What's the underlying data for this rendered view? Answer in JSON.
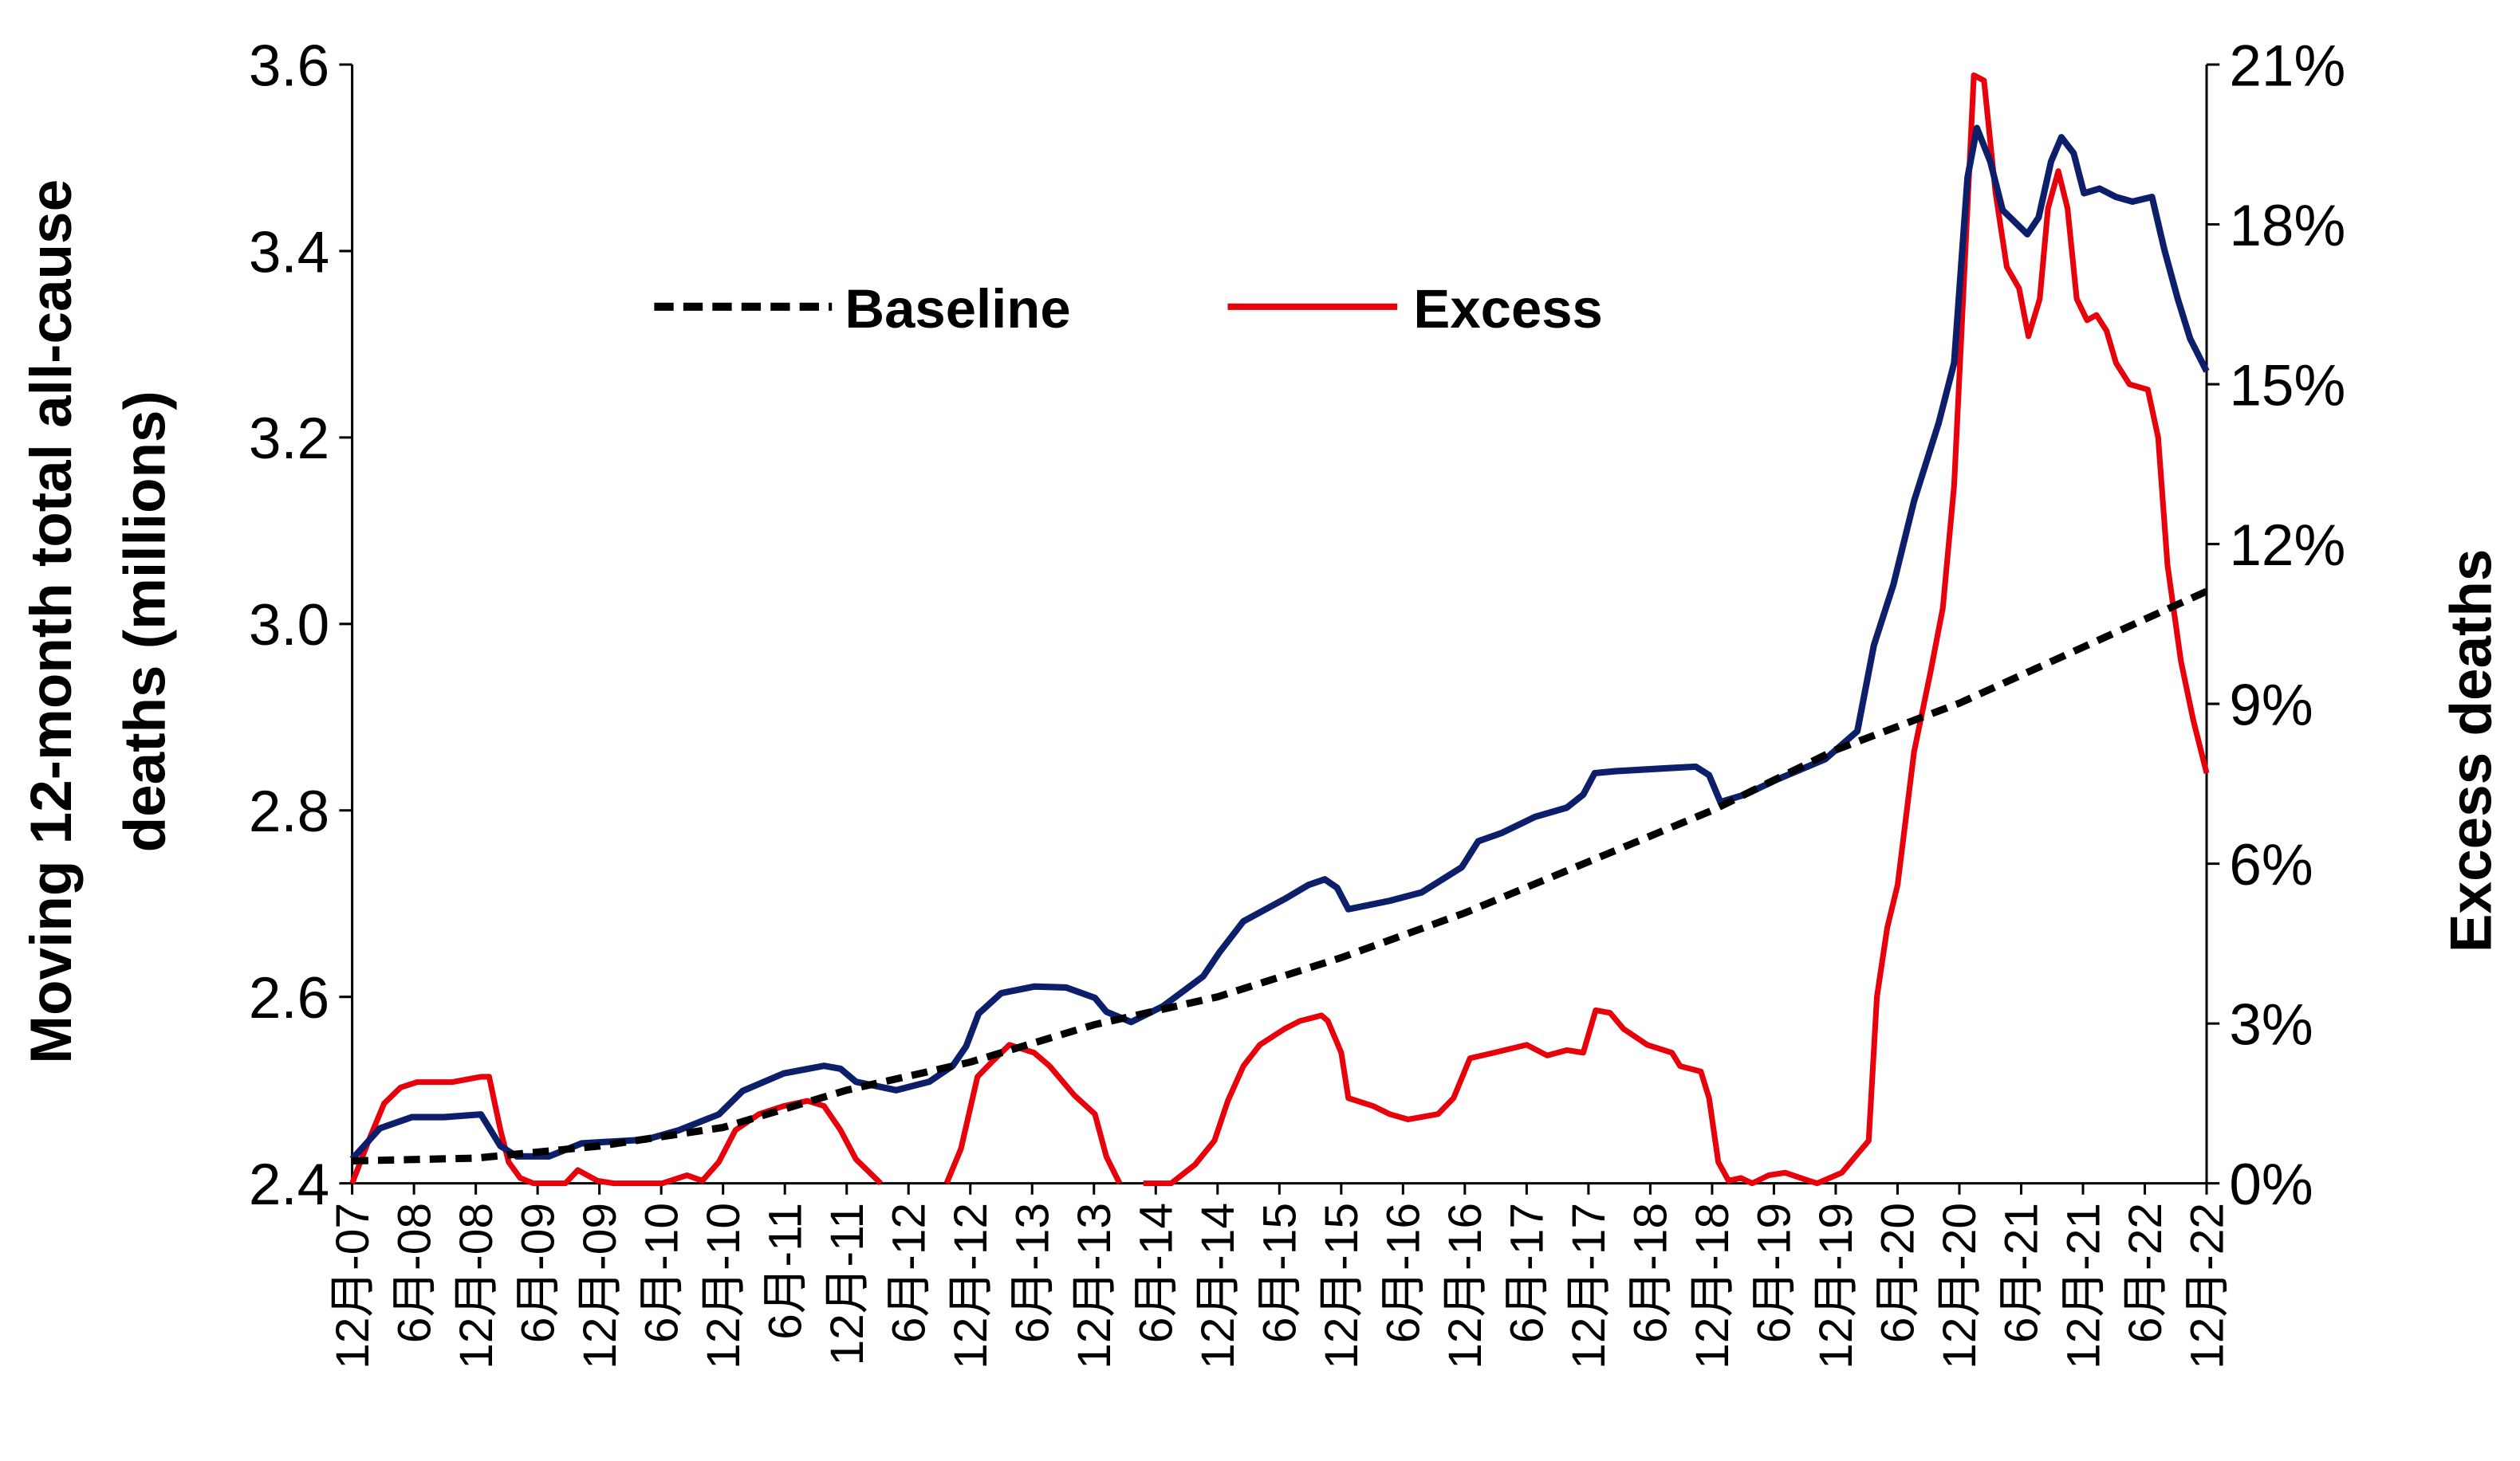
{
  "chart_data": {
    "type": "line",
    "title": "",
    "ylabel_left": [
      "Moving 12-month total all-cause",
      "deaths (millions)"
    ],
    "ylabel_right": "Excess deaths",
    "xlabel": "",
    "x_start": "12月-07",
    "x_unit": "months since 12月-07",
    "x_range": [
      0,
      180
    ],
    "ylim_left": [
      2.4,
      3.6
    ],
    "ylim_right": [
      0,
      21
    ],
    "yticks_left": [
      "2.4",
      "2.6",
      "2.8",
      "3.0",
      "3.2",
      "3.4",
      "3.6"
    ],
    "yticks_right": [
      "0%",
      "3%",
      "6%",
      "9%",
      "12%",
      "15%",
      "18%",
      "21%"
    ],
    "xticks": [
      "12月-07",
      "6月-08",
      "12月-08",
      "6月-09",
      "12月-09",
      "6月-10",
      "12月-10",
      "6月-11",
      "12月-11",
      "6月-12",
      "12月-12",
      "6月-13",
      "12月-13",
      "6月-14",
      "12月-14",
      "6月-15",
      "12月-15",
      "6月-16",
      "12月-16",
      "6月-17",
      "12月-17",
      "6月-18",
      "12月-18",
      "6月-19",
      "12月-19",
      "6月-20",
      "12月-20",
      "6月-21",
      "12月-21",
      "6月-22",
      "12月-22"
    ],
    "grid": false,
    "legend": {
      "placement": "top-left",
      "entries": [
        "Baseline",
        "Excess"
      ]
    },
    "colors": {
      "total": "#0d1f6b",
      "baseline": "#000000",
      "excess": "#e8000b"
    },
    "series": [
      {
        "name": "Total deaths (millions)",
        "axis": "left",
        "style": "solid",
        "points": [
          [
            0,
            2.426
          ],
          [
            2.7,
            2.459
          ],
          [
            5.8,
            2.471
          ],
          [
            8.9,
            2.471
          ],
          [
            12.5,
            2.474
          ],
          [
            14.4,
            2.44
          ],
          [
            16,
            2.429
          ],
          [
            19.1,
            2.429
          ],
          [
            22.3,
            2.443
          ],
          [
            28.5,
            2.447
          ],
          [
            31.7,
            2.457
          ],
          [
            35.6,
            2.474
          ],
          [
            37.9,
            2.499
          ],
          [
            41.9,
            2.518
          ],
          [
            45.8,
            2.526
          ],
          [
            47.4,
            2.523
          ],
          [
            48.9,
            2.509
          ],
          [
            52.8,
            2.5
          ],
          [
            56,
            2.509
          ],
          [
            58.3,
            2.526
          ],
          [
            59.6,
            2.547
          ],
          [
            60.8,
            2.582
          ],
          [
            63,
            2.604
          ],
          [
            66.2,
            2.611
          ],
          [
            69.3,
            2.61
          ],
          [
            72.1,
            2.599
          ],
          [
            73.2,
            2.584
          ],
          [
            75.6,
            2.573
          ],
          [
            78.7,
            2.59
          ],
          [
            82.6,
            2.622
          ],
          [
            84.2,
            2.648
          ],
          [
            86.5,
            2.681
          ],
          [
            90.5,
            2.705
          ],
          [
            92.8,
            2.72
          ],
          [
            94.4,
            2.726
          ],
          [
            95.6,
            2.717
          ],
          [
            96.7,
            2.694
          ],
          [
            100.7,
            2.703
          ],
          [
            103.8,
            2.712
          ],
          [
            107.7,
            2.739
          ],
          [
            109.3,
            2.767
          ],
          [
            111.6,
            2.776
          ],
          [
            114.8,
            2.793
          ],
          [
            117.9,
            2.803
          ],
          [
            119.5,
            2.817
          ],
          [
            120.6,
            2.84
          ],
          [
            122.6,
            2.842
          ],
          [
            127.3,
            2.845
          ],
          [
            130.4,
            2.847
          ],
          [
            131.7,
            2.838
          ],
          [
            132.8,
            2.809
          ],
          [
            135.2,
            2.817
          ],
          [
            138.3,
            2.833
          ],
          [
            143,
            2.855
          ],
          [
            146.1,
            2.885
          ],
          [
            147.7,
            2.977
          ],
          [
            149.6,
            3.042
          ],
          [
            151.6,
            3.132
          ],
          [
            154,
            3.216
          ],
          [
            155.5,
            3.28
          ],
          [
            156.8,
            3.479
          ],
          [
            157.7,
            3.532
          ],
          [
            159,
            3.496
          ],
          [
            160.2,
            3.444
          ],
          [
            162.6,
            3.418
          ],
          [
            163.7,
            3.436
          ],
          [
            164.9,
            3.496
          ],
          [
            165.9,
            3.522
          ],
          [
            167.1,
            3.505
          ],
          [
            168.1,
            3.462
          ],
          [
            169.6,
            3.467
          ],
          [
            171.2,
            3.458
          ],
          [
            172.8,
            3.453
          ],
          [
            174.7,
            3.458
          ],
          [
            175.9,
            3.401
          ],
          [
            177.2,
            3.349
          ],
          [
            178.4,
            3.306
          ],
          [
            180,
            3.271
          ]
        ]
      },
      {
        "name": "Baseline",
        "axis": "left",
        "style": "dashed",
        "points": [
          [
            0,
            2.424
          ],
          [
            12,
            2.427
          ],
          [
            24,
            2.44
          ],
          [
            36,
            2.46
          ],
          [
            48,
            2.5
          ],
          [
            60,
            2.53
          ],
          [
            72,
            2.57
          ],
          [
            84,
            2.6
          ],
          [
            96,
            2.642
          ],
          [
            108,
            2.69
          ],
          [
            120,
            2.745
          ],
          [
            132,
            2.8
          ],
          [
            144,
            2.865
          ],
          [
            156,
            2.915
          ],
          [
            168,
            2.975
          ],
          [
            180,
            3.035
          ]
        ]
      },
      {
        "name": "Excess",
        "axis": "right",
        "unit": "%",
        "style": "solid",
        "segments": [
          [
            [
              0,
              0
            ],
            [
              1.6,
              0.8
            ],
            [
              3.1,
              1.5
            ],
            [
              4.7,
              1.8
            ],
            [
              6.3,
              1.9
            ],
            [
              8.2,
              1.9
            ],
            [
              9.7,
              1.9
            ],
            [
              12.5,
              2.0
            ],
            [
              13.3,
              2.0
            ],
            [
              14.4,
              1.0
            ],
            [
              15.2,
              0.4
            ],
            [
              16.3,
              0.1
            ],
            [
              17.6,
              0
            ],
            [
              20.7,
              0
            ],
            [
              21.9,
              0.25
            ],
            [
              23.8,
              0.05
            ],
            [
              25.4,
              0
            ],
            [
              30.1,
              0
            ],
            [
              32.5,
              0.15
            ],
            [
              34,
              0.05
            ],
            [
              35.6,
              0.4
            ],
            [
              37.2,
              1.0
            ],
            [
              39.5,
              1.3
            ],
            [
              41.9,
              1.45
            ],
            [
              44.2,
              1.55
            ],
            [
              45.8,
              1.45
            ],
            [
              47.4,
              1.0
            ],
            [
              48.9,
              0.45
            ],
            [
              51.3,
              0
            ]
          ],
          [
            [
              57.7,
              0
            ],
            [
              59.1,
              0.65
            ],
            [
              60.7,
              2.0
            ],
            [
              62.2,
              2.3
            ],
            [
              63.8,
              2.6
            ],
            [
              66.2,
              2.45
            ],
            [
              67.7,
              2.2
            ],
            [
              70.1,
              1.65
            ],
            [
              72.1,
              1.3
            ],
            [
              73.2,
              0.5
            ],
            [
              74.5,
              0
            ]
          ],
          [
            [
              76.8,
              0
            ],
            [
              79.5,
              0
            ],
            [
              81.8,
              0.35
            ],
            [
              83.7,
              0.8
            ],
            [
              85,
              1.55
            ],
            [
              86.5,
              2.2
            ],
            [
              88.1,
              2.6
            ],
            [
              90.5,
              2.9
            ],
            [
              92,
              3.05
            ],
            [
              94.1,
              3.15
            ],
            [
              94.7,
              3.05
            ],
            [
              96,
              2.45
            ],
            [
              96.7,
              1.6
            ],
            [
              99.1,
              1.45
            ],
            [
              100.7,
              1.3
            ],
            [
              102.5,
              1.2
            ],
            [
              105.4,
              1.3
            ],
            [
              106.9,
              1.6
            ],
            [
              108.5,
              2.35
            ],
            [
              110.8,
              2.45
            ],
            [
              114,
              2.6
            ],
            [
              116,
              2.4
            ],
            [
              117.9,
              2.5
            ],
            [
              119.5,
              2.45
            ],
            [
              120.7,
              3.25
            ],
            [
              122.1,
              3.2
            ],
            [
              123.4,
              2.9
            ],
            [
              125.7,
              2.6
            ],
            [
              128.1,
              2.45
            ],
            [
              128.9,
              2.2
            ],
            [
              130.9,
              2.1
            ],
            [
              131.7,
              1.6
            ],
            [
              132.6,
              0.4
            ],
            [
              133.6,
              0.05
            ],
            [
              134.8,
              0.1
            ],
            [
              135.9,
              0
            ],
            [
              137.5,
              0.15
            ],
            [
              139.1,
              0.2
            ],
            [
              141.4,
              0.05
            ],
            [
              142.2,
              0
            ],
            [
              144.6,
              0.2
            ],
            [
              146.1,
              0.55
            ],
            [
              147.2,
              0.8
            ],
            [
              148,
              3.5
            ],
            [
              149,
              4.8
            ],
            [
              150,
              5.6
            ],
            [
              151.6,
              8.1
            ],
            [
              153.2,
              9.6
            ],
            [
              154.4,
              10.8
            ],
            [
              155.5,
              13.1
            ],
            [
              157.4,
              20.8
            ],
            [
              158.4,
              20.7
            ],
            [
              159.5,
              18.6
            ],
            [
              160.6,
              17.2
            ],
            [
              161.8,
              16.8
            ],
            [
              162.7,
              15.9
            ],
            [
              163.8,
              16.6
            ],
            [
              164.6,
              18.3
            ],
            [
              165.6,
              19.0
            ],
            [
              166.5,
              18.3
            ],
            [
              167.4,
              16.6
            ],
            [
              168.4,
              16.2
            ],
            [
              169.3,
              16.3
            ],
            [
              170.3,
              16.0
            ],
            [
              171.2,
              15.4
            ],
            [
              172.5,
              15.0
            ],
            [
              174.3,
              14.9
            ],
            [
              175.3,
              14.0
            ],
            [
              176.2,
              11.6
            ],
            [
              177.5,
              9.8
            ],
            [
              178.7,
              8.7
            ],
            [
              180,
              7.7
            ]
          ]
        ]
      }
    ]
  }
}
